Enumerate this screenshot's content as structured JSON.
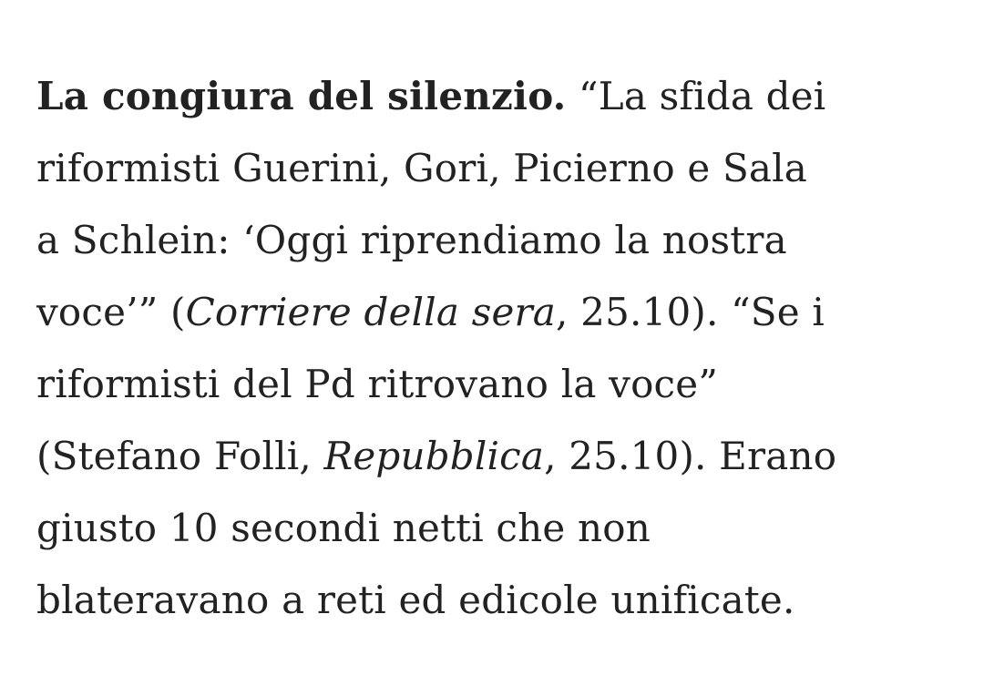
{
  "text_color": "#222222",
  "paragraph": {
    "lines": [
      [
        {
          "t": "La congiura del silenzio.",
          "s": "b"
        },
        {
          "t": " “La sfida dei",
          "s": ""
        }
      ],
      [
        {
          "t": "riformisti Guerini, Gori, Picierno e Sala",
          "s": ""
        }
      ],
      [
        {
          "t": "a Schlein: ‘Oggi riprendiamo la nostra",
          "s": ""
        }
      ],
      [
        {
          "t": "voce’” (",
          "s": ""
        },
        {
          "t": "Corriere della sera",
          "s": "i"
        },
        {
          "t": ", 25.10). “Se i",
          "s": ""
        }
      ],
      [
        {
          "t": "riformisti del Pd ritrovano la voce”",
          "s": ""
        }
      ],
      [
        {
          "t": "(Stefano Folli, ",
          "s": ""
        },
        {
          "t": "Repubblica",
          "s": "i"
        },
        {
          "t": ", 25.10). Erano",
          "s": ""
        }
      ],
      [
        {
          "t": "giusto 10 secondi netti che non",
          "s": ""
        }
      ],
      [
        {
          "t": "blateravano a reti ed edicole unificate.",
          "s": ""
        }
      ]
    ]
  }
}
